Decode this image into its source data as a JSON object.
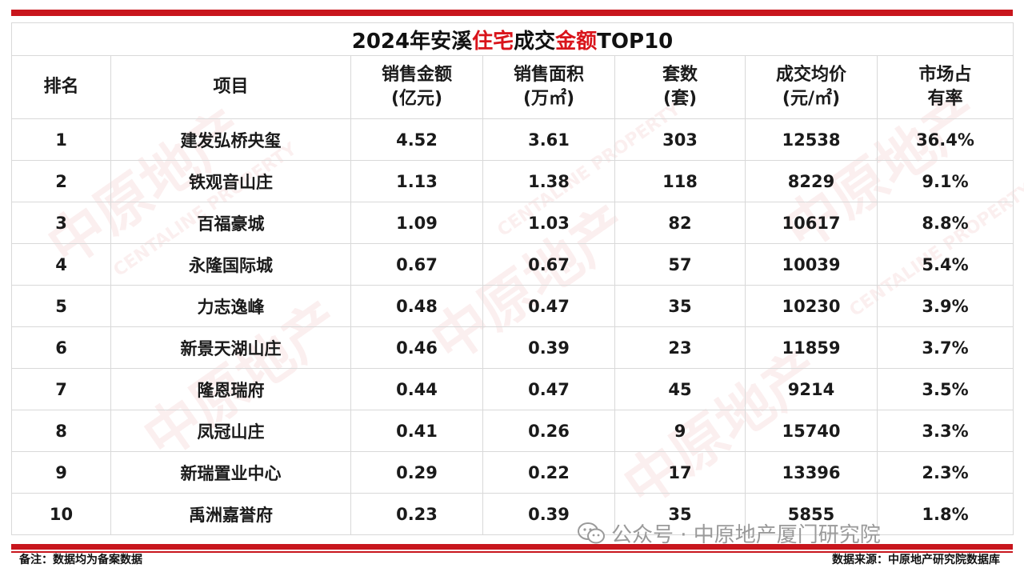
{
  "title": {
    "part1": "2024年安溪",
    "part2": "住宅",
    "part3": "成交",
    "part4": "金额",
    "part5": "TOP10"
  },
  "headers": {
    "rank": "排名",
    "project": "项目",
    "amount_l1": "销售金额",
    "amount_l2": "(亿元)",
    "area_l1": "销售面积",
    "area_l2": "(万㎡)",
    "units_l1": "套数",
    "units_l2": "(套)",
    "price_l1": "成交均价",
    "price_l2": "(元/㎡)",
    "share_l1": "市场占",
    "share_l2": "有率"
  },
  "rows": [
    {
      "rank": "1",
      "project": "建发弘桥央玺",
      "amount": "4.52",
      "area": "3.61",
      "units": "303",
      "price": "12538",
      "share": "36.4%"
    },
    {
      "rank": "2",
      "project": "铁观音山庄",
      "amount": "1.13",
      "area": "1.38",
      "units": "118",
      "price": "8229",
      "share": "9.1%"
    },
    {
      "rank": "3",
      "project": "百福豪城",
      "amount": "1.09",
      "area": "1.03",
      "units": "82",
      "price": "10617",
      "share": "8.8%"
    },
    {
      "rank": "4",
      "project": "永隆国际城",
      "amount": "0.67",
      "area": "0.67",
      "units": "57",
      "price": "10039",
      "share": "5.4%"
    },
    {
      "rank": "5",
      "project": "力志逸峰",
      "amount": "0.48",
      "area": "0.47",
      "units": "35",
      "price": "10230",
      "share": "3.9%"
    },
    {
      "rank": "6",
      "project": "新景天湖山庄",
      "amount": "0.46",
      "area": "0.39",
      "units": "23",
      "price": "11859",
      "share": "3.7%"
    },
    {
      "rank": "7",
      "project": "隆恩瑞府",
      "amount": "0.44",
      "area": "0.47",
      "units": "45",
      "price": "9214",
      "share": "3.5%"
    },
    {
      "rank": "8",
      "project": "凤冠山庄",
      "amount": "0.41",
      "area": "0.26",
      "units": "9",
      "price": "15740",
      "share": "3.3%"
    },
    {
      "rank": "9",
      "project": "新瑞置业中心",
      "amount": "0.29",
      "area": "0.22",
      "units": "17",
      "price": "13396",
      "share": "2.3%"
    },
    {
      "rank": "10",
      "project": "禹洲嘉誉府",
      "amount": "0.23",
      "area": "0.39",
      "units": "35",
      "price": "5855",
      "share": "1.8%"
    }
  ],
  "footer": {
    "note": "备注：数据均为备案数据",
    "source": "数据来源：中原地产研究院数据库",
    "wechat": "公众号 · 中原地产厦门研究院"
  },
  "watermark": {
    "cn": "中原地产",
    "en": "CENTALINE PROPERTY"
  },
  "colors": {
    "accent": "#c8161d",
    "highlight": "#d9141b"
  }
}
